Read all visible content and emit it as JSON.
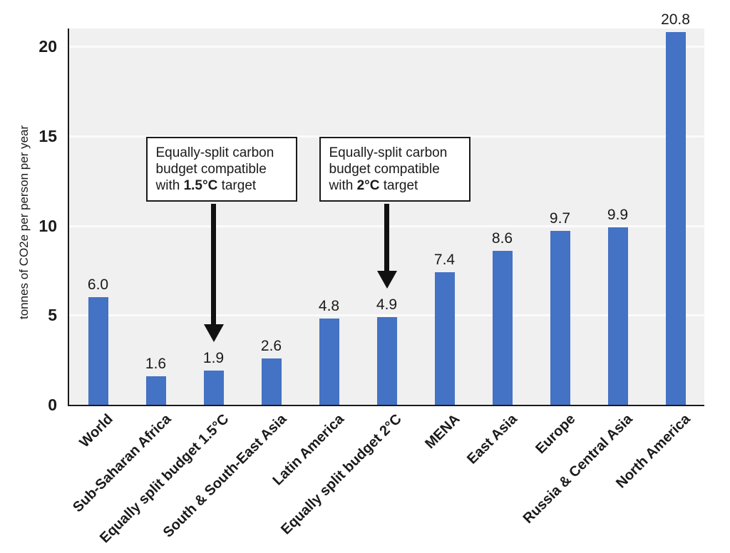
{
  "chart_data": {
    "type": "bar",
    "title": "",
    "xlabel": "",
    "ylabel": "tonnes of CO2e per person per year",
    "ylim": [
      0,
      21
    ],
    "yticks": [
      0,
      5,
      10,
      15,
      20
    ],
    "grid": "horizontal gridlines at yticks",
    "legend": "none",
    "bar_color": "#4472c4",
    "plot_background": "#f0f0f0",
    "categories": [
      "World",
      "Sub-Saharan Africa",
      "Equally split budget 1.5°C",
      "South & South-East Asia",
      "Latin America",
      "Equally split budget 2°C",
      "MENA",
      "East Asia",
      "Europe",
      "Russia & Central Asia",
      "North America"
    ],
    "values": [
      6.0,
      1.6,
      1.9,
      2.6,
      4.8,
      4.9,
      7.4,
      8.6,
      9.7,
      9.9,
      20.8
    ],
    "value_labels": [
      "6.0",
      "1.6",
      "1.9",
      "2.6",
      "4.8",
      "4.9",
      "7.4",
      "8.6",
      "9.7",
      "9.9",
      "20.8"
    ],
    "annotations": [
      {
        "text_before": "Equally-split carbon budget compatible with ",
        "bold_text": "1.5°C",
        "text_after": " target",
        "target_category": "Equally split budget 1.5°C",
        "target_index": 2
      },
      {
        "text_before": "Equally-split carbon budget compatible with ",
        "bold_text": "2°C",
        "text_after": " target",
        "target_category": "Equally split budget 2°C",
        "target_index": 5
      }
    ]
  }
}
